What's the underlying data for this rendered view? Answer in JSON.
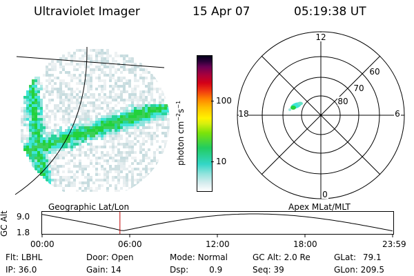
{
  "header": {
    "instrument": "Ultraviolet Imager",
    "date": "15 Apr 07",
    "time": "05:19:38 UT"
  },
  "colorbar": {
    "unit_label": "photon cm",
    "unit_sup1": "−2",
    "unit_mid": "s",
    "unit_sup2": "−1",
    "ticks": [
      "100",
      "10"
    ],
    "scale": "log"
  },
  "polar_plot": {
    "mlt_labels": [
      "12",
      "18",
      "6",
      "0"
    ],
    "mlat_labels": [
      "60",
      "70",
      "80"
    ],
    "projection_label": "Apex MLat/MLT"
  },
  "timeline": {
    "left_label": "Geographic Lat/Lon",
    "ylabel": "GC Alt",
    "y_ticks": [
      "9.0",
      "1.8"
    ],
    "x_ticks": [
      "00:00",
      "06:00",
      "12:00",
      "18:00",
      "23:59"
    ],
    "current_time_hours": 5.33,
    "marker_color": "#c00000"
  },
  "meta": {
    "flt_label": "Flt:",
    "flt_value": "LBHL",
    "door_label": "Door:",
    "door_value": "Open",
    "mode_label": "Mode:",
    "mode_value": "Normal",
    "gcalt_label": "GC Alt:",
    "gcalt_value": "2.0 Re",
    "glat_label": "GLat:",
    "glat_value": "79.1",
    "ip_label": "IP:",
    "ip_value": "36.0",
    "gain_label": "Gain:",
    "gain_value": "14",
    "dsp_label": "Dsp:",
    "dsp_value": "0.9",
    "seq_label": "Seq:",
    "seq_value": "39",
    "glon_label": "GLon:",
    "glon_value": "209.5"
  },
  "colors": {
    "emission_green": "#22d23c",
    "emission_cyan": "#3fe4d6",
    "noise_gray": "#d4e4e6"
  }
}
